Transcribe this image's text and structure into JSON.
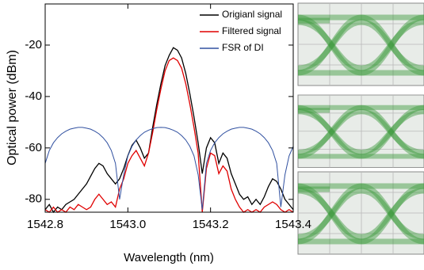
{
  "chart_data": {
    "type": "line",
    "x_label": "Wavelength (nm)",
    "y_label": "Optical power (dBm)",
    "xlim": [
      1542.8,
      1543.4
    ],
    "xticks": [
      1542.8,
      {
        "value": 1543.0,
        "label": "1543.0"
      },
      1543.2,
      1543.4
    ],
    "ylim": [
      -85,
      -4
    ],
    "yticks": [
      -20,
      -40,
      -60,
      -80
    ],
    "legend": "upper right",
    "x": [
      1542.8,
      1542.81,
      1542.82,
      1542.83,
      1542.84,
      1542.85,
      1542.86,
      1542.87,
      1542.88,
      1542.89,
      1542.9,
      1542.91,
      1542.92,
      1542.93,
      1542.94,
      1542.95,
      1542.96,
      1542.97,
      1542.98,
      1542.99,
      1543.0,
      1543.01,
      1543.02,
      1543.03,
      1543.04,
      1543.05,
      1543.06,
      1543.07,
      1543.08,
      1543.09,
      1543.1,
      1543.11,
      1543.12,
      1543.13,
      1543.14,
      1543.15,
      1543.16,
      1543.17,
      1543.18,
      1543.19,
      1543.2,
      1543.21,
      1543.22,
      1543.23,
      1543.24,
      1543.25,
      1543.26,
      1543.27,
      1543.28,
      1543.29,
      1543.3,
      1543.31,
      1543.32,
      1543.33,
      1543.34,
      1543.35,
      1543.36,
      1543.37,
      1543.38,
      1543.39,
      1543.4
    ],
    "series": [
      {
        "name": "Origianl signal",
        "color": "#000000",
        "values": [
          -84,
          -82,
          -85,
          -83,
          -84,
          -82,
          -81,
          -80,
          -78,
          -76,
          -74,
          -71,
          -68,
          -66,
          -67,
          -70,
          -72,
          -74,
          -72,
          -68,
          -63,
          -59,
          -57,
          -60,
          -64,
          -62,
          -52,
          -43,
          -35,
          -28,
          -24,
          -21,
          -22,
          -25,
          -31,
          -39,
          -48,
          -58,
          -70,
          -60,
          -56,
          -58,
          -66,
          -62,
          -64,
          -70,
          -74,
          -78,
          -80,
          -79,
          -82,
          -80,
          -82,
          -79,
          -75,
          -72,
          -73,
          -76,
          -80,
          -82,
          -84
        ]
      },
      {
        "name": "Filtered signal",
        "color": "#e00000",
        "values": [
          -84,
          -85,
          -83,
          -85,
          -84,
          -85,
          -83,
          -84,
          -82,
          -83,
          -84,
          -83,
          -80,
          -78,
          -80,
          -82,
          -81,
          -83,
          -76,
          -72,
          -66,
          -63,
          -61,
          -64,
          -67,
          -62,
          -54,
          -45,
          -37,
          -30,
          -26,
          -25,
          -26,
          -29,
          -35,
          -43,
          -52,
          -62,
          -85,
          -68,
          -62,
          -63,
          -70,
          -67,
          -69,
          -76,
          -80,
          -83,
          -85,
          -84,
          -85,
          -84,
          -85,
          -83,
          -82,
          -81,
          -82,
          -84,
          -85,
          -84,
          -85
        ]
      },
      {
        "name": "FSR of DI",
        "color": "#3050a0",
        "values": [
          -66,
          -61,
          -58,
          -56,
          -54.5,
          -53.5,
          -52.7,
          -52.3,
          -52,
          -52,
          -52.3,
          -52.7,
          -53.5,
          -54.5,
          -56,
          -58,
          -61,
          -66,
          -80,
          -70.4,
          -63.1,
          -59.4,
          -56.9,
          -55.2,
          -53.9,
          -53.1,
          -52.5,
          -52.1,
          -52,
          -52.1,
          -52.5,
          -53.1,
          -53.9,
          -55.2,
          -56.9,
          -59.4,
          -63.1,
          -70.4,
          -84,
          -66,
          -61,
          -58,
          -56,
          -54.5,
          -53.5,
          -52.7,
          -52.3,
          -52,
          -52,
          -52.3,
          -52.7,
          -53.5,
          -54.5,
          -56,
          -58,
          -61,
          -66,
          -83,
          -70.4,
          -63.1,
          -59.4
        ]
      }
    ]
  }
}
